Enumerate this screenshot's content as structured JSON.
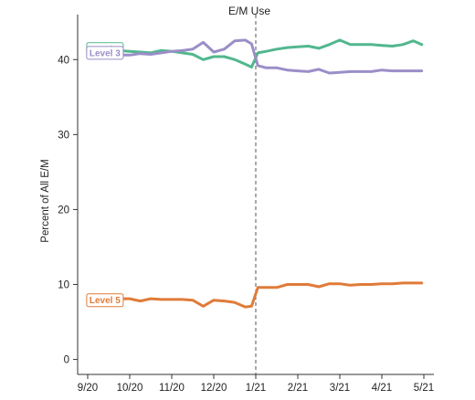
{
  "chart_data": {
    "type": "line",
    "title": "E/M Use",
    "xlabel": "",
    "ylabel": "Percent of All E/M",
    "x_tick_labels": [
      "9/20",
      "10/20",
      "11/20",
      "12/20",
      "1/21",
      "2/21",
      "3/21",
      "4/21",
      "5/21"
    ],
    "x_range_months": [
      0,
      8
    ],
    "ylim": [
      -2,
      46
    ],
    "y_ticks": [
      0,
      10,
      20,
      30,
      40
    ],
    "grid": false,
    "legend": "inline labels at left end of each line",
    "annotation": "dashed vertical line at 1/21",
    "event_line_x": 4,
    "series": [
      {
        "name": "Level 4",
        "color": "#52b78e",
        "x": [
          0.15,
          0.5,
          0.75,
          1.0,
          1.25,
          1.5,
          1.75,
          2.0,
          2.25,
          2.5,
          2.75,
          3.0,
          3.25,
          3.5,
          3.75,
          3.9,
          4.05,
          4.25,
          4.5,
          4.75,
          5.0,
          5.25,
          5.5,
          5.75,
          6.0,
          6.25,
          6.5,
          6.75,
          7.0,
          7.25,
          7.5,
          7.75,
          7.95
        ],
        "values": [
          41.4,
          41.1,
          41.2,
          41.1,
          41.0,
          40.9,
          41.2,
          41.1,
          40.9,
          40.7,
          40.0,
          40.4,
          40.4,
          40.0,
          39.4,
          39.0,
          40.9,
          41.1,
          41.4,
          41.6,
          41.7,
          41.8,
          41.5,
          42.0,
          42.6,
          42.0,
          42.0,
          42.0,
          41.9,
          41.8,
          42.0,
          42.5,
          42.0
        ]
      },
      {
        "name": "Level 3",
        "color": "#9b8ec8",
        "x": [
          0.15,
          0.5,
          0.75,
          1.0,
          1.25,
          1.5,
          1.75,
          2.0,
          2.25,
          2.5,
          2.75,
          3.0,
          3.25,
          3.5,
          3.75,
          3.9,
          4.05,
          4.25,
          4.5,
          4.75,
          5.0,
          5.25,
          5.5,
          5.75,
          6.0,
          6.25,
          6.5,
          6.75,
          7.0,
          7.25,
          7.5,
          7.75,
          7.95
        ],
        "values": [
          40.9,
          40.6,
          40.6,
          40.6,
          40.8,
          40.7,
          40.9,
          41.1,
          41.2,
          41.4,
          42.3,
          41.0,
          41.4,
          42.5,
          42.6,
          42.1,
          39.2,
          38.9,
          38.9,
          38.6,
          38.5,
          38.4,
          38.7,
          38.2,
          38.3,
          38.4,
          38.4,
          38.4,
          38.6,
          38.5,
          38.5,
          38.5,
          38.5
        ]
      },
      {
        "name": "Level 5",
        "color": "#e07b39",
        "x": [
          0.15,
          0.5,
          0.75,
          1.0,
          1.25,
          1.5,
          1.75,
          2.0,
          2.25,
          2.5,
          2.75,
          3.0,
          3.25,
          3.5,
          3.75,
          3.9,
          4.05,
          4.25,
          4.5,
          4.75,
          5.0,
          5.25,
          5.5,
          5.75,
          6.0,
          6.25,
          6.5,
          6.75,
          7.0,
          7.25,
          7.5,
          7.75,
          7.95
        ],
        "values": [
          7.9,
          8.1,
          8.1,
          8.1,
          7.8,
          8.1,
          8.0,
          8.0,
          8.0,
          7.9,
          7.1,
          7.9,
          7.8,
          7.6,
          7.0,
          7.1,
          9.6,
          9.6,
          9.6,
          10.0,
          10.0,
          10.0,
          9.7,
          10.1,
          10.1,
          9.9,
          10.0,
          10.0,
          10.1,
          10.1,
          10.2,
          10.2,
          10.2
        ]
      }
    ]
  }
}
